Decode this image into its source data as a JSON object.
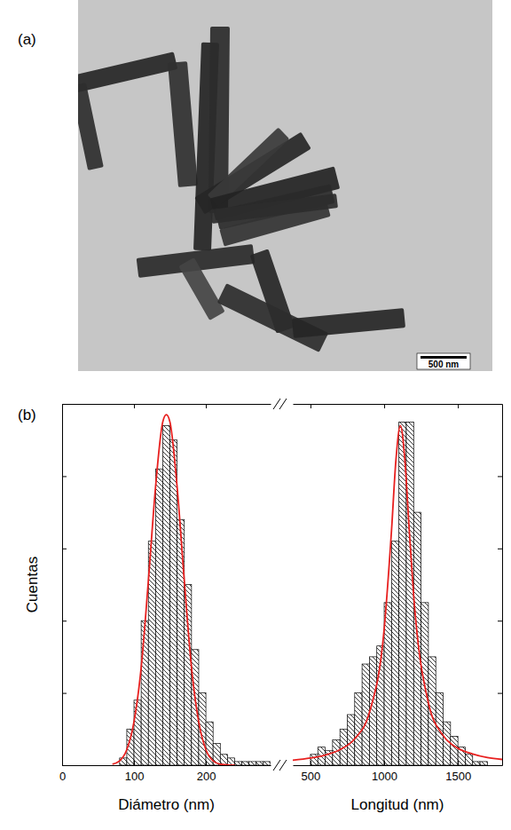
{
  "image_panel": {
    "label": "(a)",
    "scale_bar_label": "500 nm"
  },
  "chart_data": [
    {
      "type": "histogram",
      "panel_label": "(b)",
      "xlabel": "Diámetro (nm)",
      "ylabel": "Cuentas",
      "xlim": [
        0,
        290
      ],
      "xticks": [
        0,
        100,
        200
      ],
      "ylim": [
        0,
        100
      ],
      "yticks": [
        0,
        20,
        40,
        60,
        80,
        100
      ],
      "tick_labels": "x",
      "color": "#000000",
      "bins": [
        80,
        90,
        100,
        110,
        120,
        130,
        140,
        150,
        160,
        170,
        180,
        190,
        200,
        210,
        220,
        230,
        240,
        250,
        260,
        270,
        280,
        290
      ],
      "counts": [
        2,
        10,
        18,
        40,
        62,
        82,
        94,
        90,
        68,
        50,
        32,
        20,
        12,
        6,
        3,
        2,
        1,
        1,
        1,
        1,
        1
      ],
      "series": [
        {
          "type": "line",
          "color": "#e8201f",
          "x": [
            70,
            80,
            90,
            100,
            110,
            120,
            130,
            140,
            145,
            150,
            160,
            170,
            180,
            190,
            200,
            210,
            220,
            230,
            240
          ],
          "values": [
            0.3,
            1.2,
            4.3,
            12,
            27,
            51,
            77,
            95,
            97,
            95,
            77,
            51,
            27,
            12,
            4.3,
            1.2,
            0.3,
            0.1,
            0
          ]
        }
      ]
    },
    {
      "type": "histogram",
      "xlabel": "Longitud (nm)",
      "xlim": [
        380,
        1800
      ],
      "xticks": [
        500,
        1000,
        1500
      ],
      "ylim": [
        0,
        100
      ],
      "yticks": [
        0,
        20,
        40,
        60,
        80,
        100
      ],
      "tick_labels": "x",
      "color": "#000000",
      "bins": [
        500,
        550,
        600,
        650,
        700,
        750,
        800,
        850,
        900,
        950,
        1000,
        1050,
        1100,
        1150,
        1200,
        1250,
        1300,
        1350,
        1400,
        1450,
        1500,
        1550,
        1600,
        1650,
        1700
      ],
      "counts": [
        3,
        5,
        4,
        7,
        10,
        14,
        20,
        28,
        30,
        33,
        45,
        62,
        95,
        95,
        70,
        45,
        30,
        20,
        12,
        8,
        5,
        3,
        1,
        1
      ],
      "series": [
        {
          "type": "line",
          "color": "#e8201f",
          "x": [
            380,
            500,
            600,
            700,
            800,
            900,
            1000,
            1050,
            1080,
            1110,
            1140,
            1170,
            1200,
            1300,
            1400,
            1500,
            1600,
            1700,
            1800
          ],
          "values": [
            1.4,
            2.0,
            2.8,
            4.3,
            7.3,
            14.6,
            37.7,
            65.1,
            84.6,
            94,
            84.6,
            65.1,
            47,
            17.2,
            8.2,
            4.7,
            3.1,
            2.1,
            1.6
          ]
        }
      ]
    }
  ]
}
